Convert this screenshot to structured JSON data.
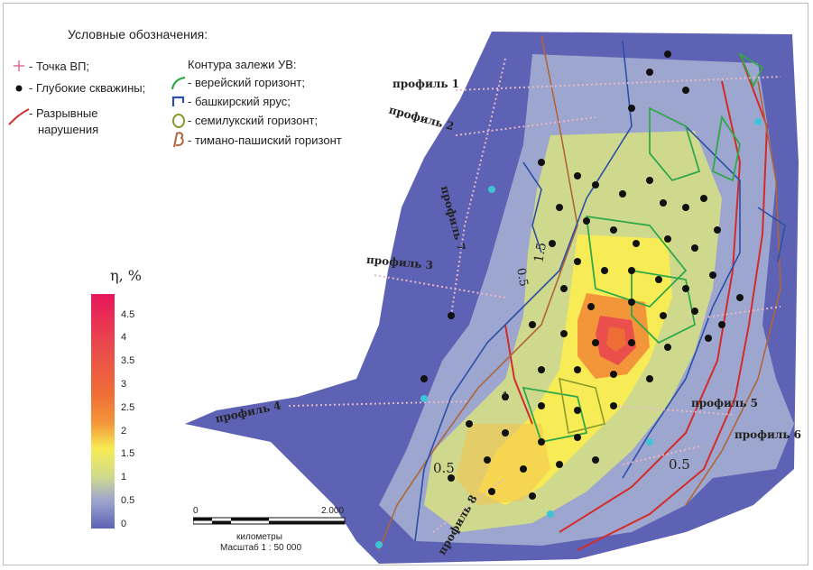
{
  "legend": {
    "title": "Условные обозначения:",
    "point_vp": "- Точка ВП;",
    "deep_wells": "- Глубокие скважины;",
    "faults_1": "- Разрывные",
    "faults_2": "нарушения",
    "contour_title": "Контура залежи УВ:",
    "vereisky": "- верейский горизонт;",
    "bashkir": "- башкирский ярус;",
    "semiluk": "- семилукский горизонт;",
    "timano": "- тимано-пашиский горизонт"
  },
  "colorbar": {
    "title": "η, %",
    "ticks": [
      "4.5",
      "4",
      "3.5",
      "3",
      "2.5",
      "2",
      "1.5",
      "1",
      "0.5",
      "0"
    ],
    "colors": [
      "#e8175d",
      "#e83a63",
      "#ea4f4b",
      "#ee6c36",
      "#f3963a",
      "#f6c34c",
      "#f7ec55",
      "#cfd98d",
      "#9da6ce",
      "#5e62b5"
    ]
  },
  "scale": {
    "start": "0",
    "end": "2.000",
    "units": "километры",
    "ratio": "Масштаб 1 : 50 000"
  },
  "profiles": {
    "p1": "профиль 1",
    "p2": "профиль 2",
    "p3": "профиль 3",
    "p4": "профиль 4",
    "p5": "профиль 5",
    "p6": "профиль 6",
    "p7": "профиль 7",
    "p8": "профиль 8"
  },
  "contour_labels": {
    "c05a": "0.5",
    "c05b": "0.5",
    "c05c": "0.5",
    "c15": "1.5",
    "c1": "1"
  },
  "colors": {
    "low": "#5e62b5",
    "lavender": "#9da6ce",
    "olive": "#cfd98d",
    "yellow": "#f7ec55",
    "orange": "#f3963a",
    "red": "#ea4f4b",
    "vereisky": "#2fa84a",
    "bashkir": "#2c4fa8",
    "semiluk": "#8a9a2b",
    "timano": "#b0643a",
    "fault": "#d32a2a"
  }
}
